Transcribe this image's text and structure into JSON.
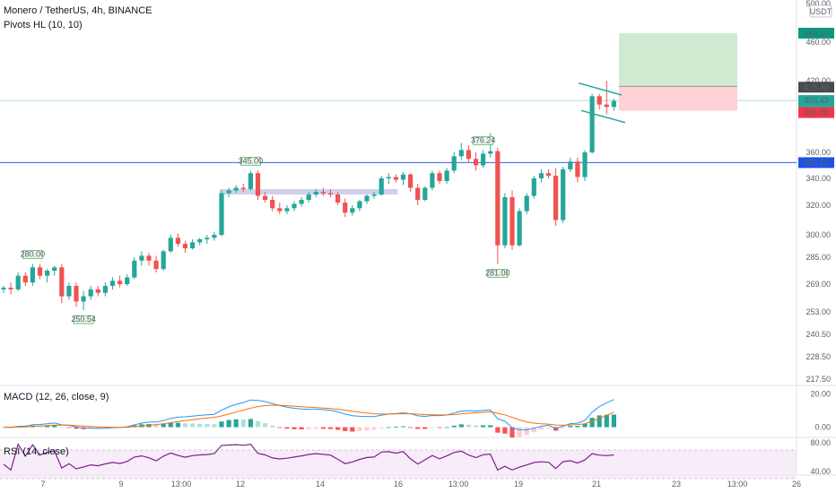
{
  "header": {
    "symbol_line": "Monero / TetherUS, 4h, BINANCE",
    "indicator_line": "Pivots HL (10, 10)",
    "macd_label": "MACD (12, 26, close, 9)",
    "rsi_label": "RSI (14, close)"
  },
  "price_axis": {
    "currency": "USDT",
    "ticks": [
      "500.00",
      "460.00",
      "420.00",
      "360.00",
      "340.00",
      "320.00",
      "300.00",
      "285.00",
      "269.00",
      "253.00",
      "240.50",
      "228.50",
      "217.50"
    ],
    "badges": [
      {
        "value": "469.30",
        "color": "#089981"
      },
      {
        "value": "415.30",
        "color": "#4a4a4a"
      },
      {
        "value": "403.43",
        "color": "#26a69a"
      },
      {
        "value": "03:59:11",
        "color": "#26a69a"
      },
      {
        "value": "394.80",
        "color": "#f23645"
      },
      {
        "value": "352.12",
        "color": "#1e53e5"
      }
    ]
  },
  "macd_axis": {
    "ticks": [
      "20.00",
      "0.00"
    ]
  },
  "rsi_axis": {
    "ticks": [
      "80.00",
      "40.00"
    ]
  },
  "time_axis": {
    "ticks": [
      "7",
      "9",
      "13:00",
      "12",
      "14",
      "16",
      "13:00",
      "19",
      "21",
      "23",
      "13:00",
      "26"
    ]
  },
  "colors": {
    "up": "#26a69a",
    "down": "#ef5350",
    "hline": "#2962ff",
    "macd": "#2196f3",
    "signal": "#ff6d00",
    "rsi": "#7e1f8e"
  },
  "chart_data": {
    "type": "candlestick",
    "title": "Monero / TetherUS, 4h, BINANCE",
    "timeframe": "4h",
    "horizontal_line": 352.12,
    "pivot_labels": [
      {
        "text": "280.00",
        "kind": "high"
      },
      {
        "text": "250.54",
        "kind": "low"
      },
      {
        "text": "345.00",
        "kind": "high"
      },
      {
        "text": "376.24",
        "kind": "high"
      },
      {
        "text": "281.00",
        "kind": "low"
      }
    ],
    "position_tool": {
      "target": 469.3,
      "entry": 415.3,
      "stop": 394.8
    },
    "last_price": 403.43,
    "countdown": "03:59:11",
    "candles": [
      [
        266,
        268,
        264,
        267
      ],
      [
        267,
        270,
        263,
        266
      ],
      [
        266,
        276,
        265,
        274
      ],
      [
        274,
        276,
        268,
        270
      ],
      [
        270,
        281,
        268,
        279
      ],
      [
        279,
        281,
        272,
        274
      ],
      [
        274,
        278,
        270,
        277
      ],
      [
        277,
        280,
        274,
        279
      ],
      [
        279,
        281,
        258,
        262
      ],
      [
        262,
        270,
        260,
        268
      ],
      [
        268,
        270,
        256,
        259
      ],
      [
        259,
        265,
        254,
        262
      ],
      [
        262,
        268,
        260,
        266
      ],
      [
        266,
        268,
        262,
        264
      ],
      [
        264,
        270,
        262,
        268
      ],
      [
        268,
        273,
        266,
        271
      ],
      [
        271,
        274,
        267,
        269
      ],
      [
        269,
        275,
        268,
        273
      ],
      [
        273,
        285,
        272,
        283
      ],
      [
        283,
        289,
        280,
        286
      ],
      [
        286,
        288,
        280,
        283
      ],
      [
        283,
        286,
        276,
        278
      ],
      [
        278,
        290,
        277,
        289
      ],
      [
        289,
        300,
        288,
        298
      ],
      [
        298,
        301,
        292,
        294
      ],
      [
        294,
        296,
        288,
        291
      ],
      [
        291,
        297,
        290,
        295
      ],
      [
        295,
        298,
        293,
        297
      ],
      [
        297,
        300,
        294,
        298
      ],
      [
        298,
        302,
        296,
        300
      ],
      [
        300,
        331,
        299,
        329
      ],
      [
        329,
        333,
        326,
        331
      ],
      [
        331,
        335,
        329,
        333
      ],
      [
        333,
        336,
        330,
        332
      ],
      [
        332,
        346,
        331,
        344
      ],
      [
        344,
        346,
        324,
        327
      ],
      [
        327,
        330,
        322,
        324
      ],
      [
        324,
        327,
        316,
        318
      ],
      [
        318,
        322,
        314,
        316
      ],
      [
        316,
        320,
        314,
        318
      ],
      [
        318,
        323,
        316,
        321
      ],
      [
        321,
        326,
        319,
        324
      ],
      [
        324,
        330,
        322,
        328
      ],
      [
        328,
        332,
        326,
        330
      ],
      [
        330,
        333,
        327,
        329
      ],
      [
        329,
        332,
        326,
        328
      ],
      [
        328,
        330,
        320,
        322
      ],
      [
        322,
        325,
        312,
        315
      ],
      [
        315,
        320,
        313,
        318
      ],
      [
        318,
        324,
        316,
        323
      ],
      [
        323,
        328,
        321,
        327
      ],
      [
        327,
        330,
        325,
        328
      ],
      [
        328,
        342,
        327,
        340
      ],
      [
        340,
        344,
        336,
        341
      ],
      [
        341,
        343,
        337,
        339
      ],
      [
        339,
        345,
        335,
        343
      ],
      [
        343,
        344,
        330,
        333
      ],
      [
        333,
        336,
        320,
        324
      ],
      [
        324,
        334,
        323,
        333
      ],
      [
        333,
        346,
        331,
        344
      ],
      [
        344,
        346,
        336,
        338
      ],
      [
        338,
        348,
        336,
        346
      ],
      [
        346,
        360,
        344,
        357
      ],
      [
        357,
        368,
        354,
        362
      ],
      [
        362,
        366,
        352,
        355
      ],
      [
        355,
        360,
        346,
        350
      ],
      [
        350,
        362,
        348,
        359
      ],
      [
        359,
        376,
        356,
        361
      ],
      [
        361,
        364,
        281,
        293
      ],
      [
        293,
        329,
        291,
        326
      ],
      [
        326,
        331,
        290,
        293
      ],
      [
        293,
        318,
        292,
        316
      ],
      [
        316,
        329,
        314,
        327
      ],
      [
        327,
        342,
        325,
        340
      ],
      [
        340,
        347,
        337,
        344
      ],
      [
        344,
        347,
        340,
        342
      ],
      [
        342,
        348,
        306,
        310
      ],
      [
        310,
        349,
        308,
        347
      ],
      [
        347,
        356,
        345,
        353
      ],
      [
        353,
        356,
        337,
        341
      ],
      [
        341,
        362,
        338,
        360
      ],
      [
        360,
        409,
        359,
        407
      ],
      [
        407,
        409,
        396,
        400
      ],
      [
        400,
        420,
        392,
        398
      ],
      [
        398,
        405,
        395,
        403
      ]
    ],
    "macd": {
      "y_range": [
        -4,
        24
      ]
    },
    "rsi": {
      "y_range": [
        40,
        80
      ]
    }
  }
}
